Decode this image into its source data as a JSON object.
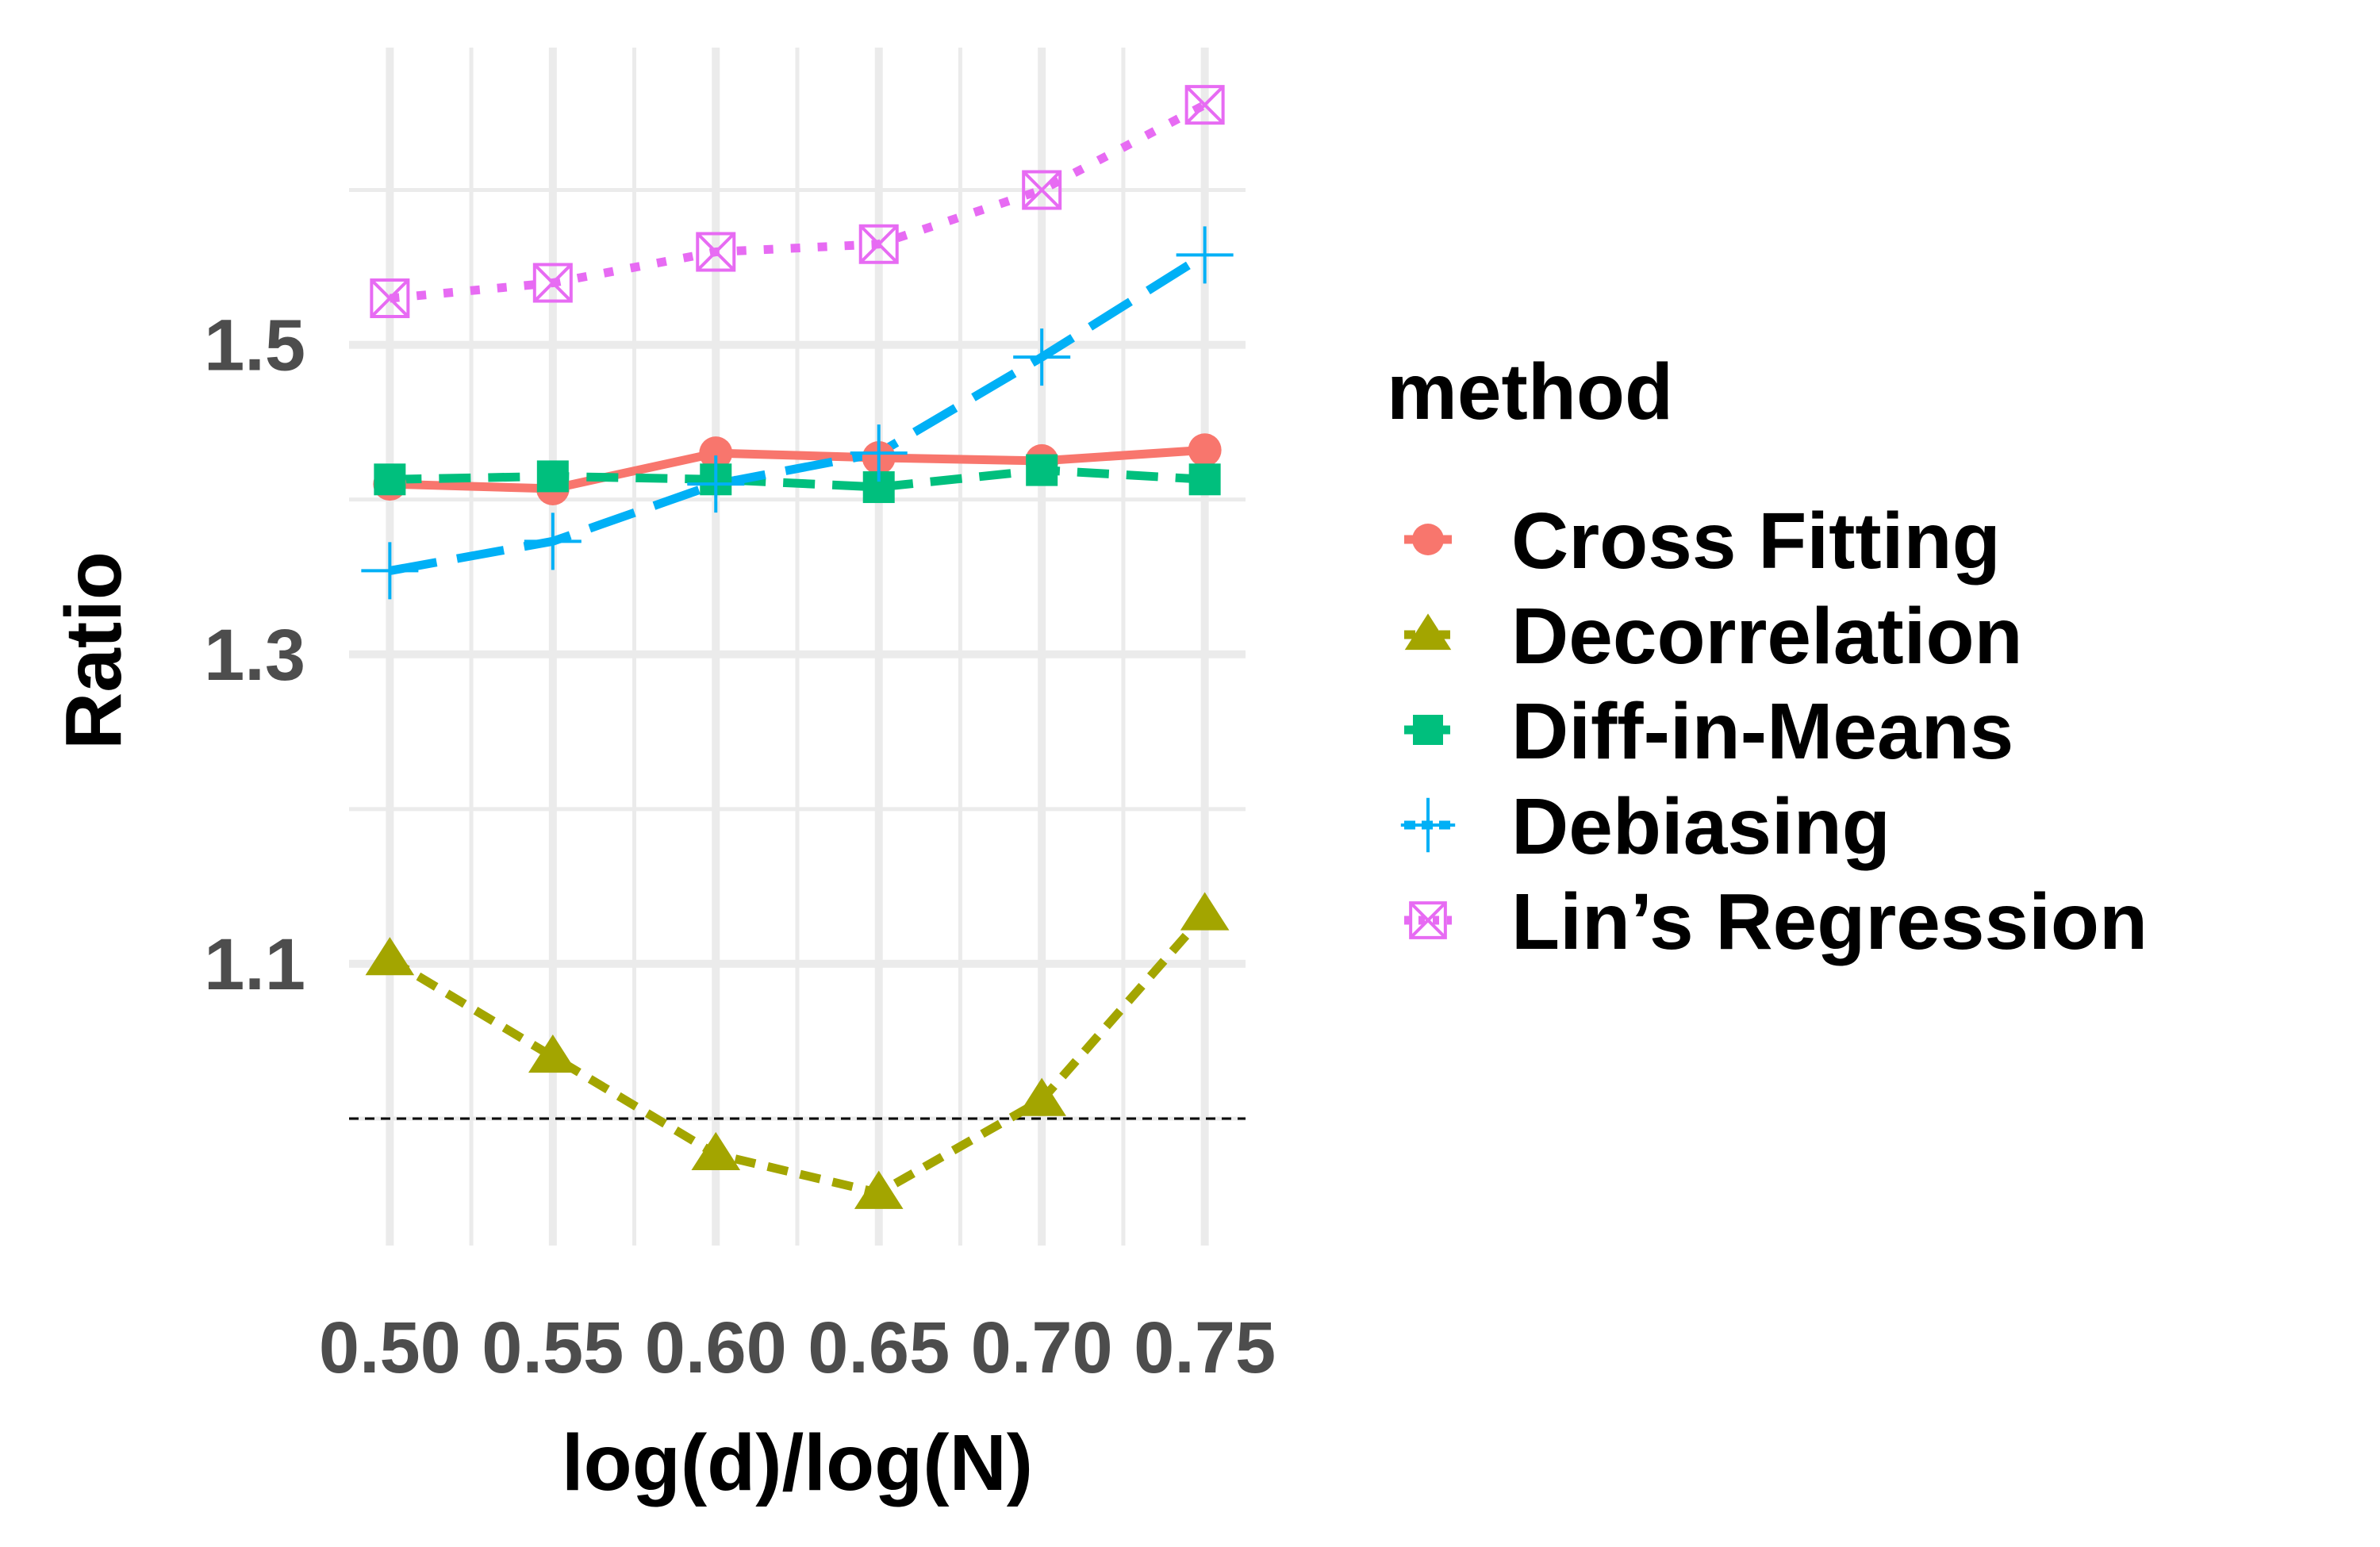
{
  "chart_data": {
    "type": "line",
    "xlabel": "log(d)/log(N)",
    "ylabel": "Ratio",
    "x": [
      0.5,
      0.55,
      0.6,
      0.65,
      0.7,
      0.75
    ],
    "x_tick_labels": [
      "0.50",
      "0.55",
      "0.60",
      "0.65",
      "0.70",
      "0.75"
    ],
    "y_tick_values": [
      1.1,
      1.3,
      1.5
    ],
    "y_tick_labels": [
      "1.1",
      "1.3",
      "1.5"
    ],
    "xlim": [
      0.4875,
      0.7625
    ],
    "ylim": [
      0.918,
      1.692
    ],
    "reference_line_y": 1.0,
    "grid": true,
    "legend": {
      "title": "method",
      "placement": "right"
    },
    "series": [
      {
        "name": "Cross Fitting",
        "color": "#F8766D",
        "line": "solid",
        "marker": "circle",
        "values": [
          1.41,
          1.407,
          1.43,
          1.427,
          1.425,
          1.432
        ]
      },
      {
        "name": "Decorrelation",
        "color": "#A3A500",
        "line": "dotted-short",
        "marker": "triangle",
        "values": [
          1.103,
          1.04,
          0.977,
          0.952,
          1.012,
          1.132
        ]
      },
      {
        "name": "Diff-in-Means",
        "color": "#00BF7D",
        "line": "dashed",
        "marker": "square",
        "values": [
          1.413,
          1.415,
          1.413,
          1.408,
          1.419,
          1.413
        ]
      },
      {
        "name": "Debiasing",
        "color": "#00B0F6",
        "line": "long-dash",
        "marker": "plus",
        "values": [
          1.354,
          1.373,
          1.41,
          1.43,
          1.492,
          1.558
        ]
      },
      {
        "name": "Lin’s Regression",
        "color": "#E76BF3",
        "line": "dotted",
        "marker": "square-x",
        "values": [
          1.53,
          1.54,
          1.56,
          1.565,
          1.6,
          1.655
        ]
      }
    ]
  }
}
